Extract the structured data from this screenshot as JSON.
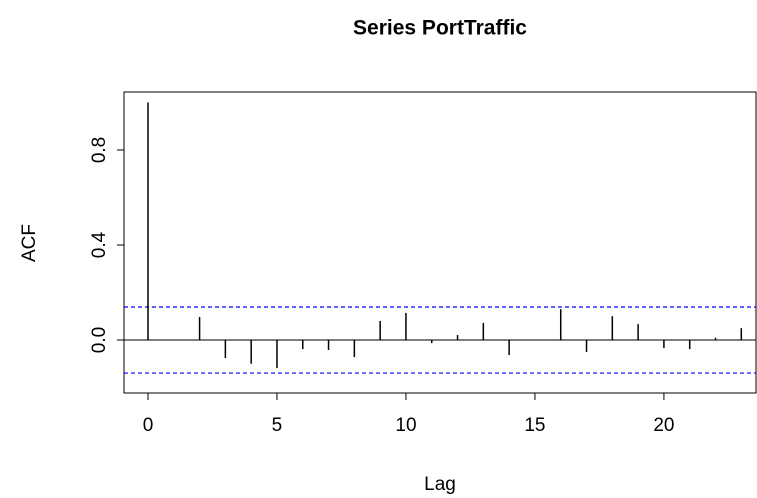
{
  "chart_data": {
    "type": "acf",
    "title": "Series  PortTraffic",
    "xlabel": "Lag",
    "ylabel": "ACF",
    "x": [
      0,
      1,
      2,
      3,
      4,
      5,
      6,
      7,
      8,
      9,
      10,
      11,
      12,
      13,
      14,
      15,
      16,
      17,
      18,
      19,
      20,
      21,
      22,
      23
    ],
    "values": [
      1.0,
      0.0,
      0.097,
      -0.076,
      -0.1,
      -0.118,
      -0.038,
      -0.042,
      -0.072,
      0.08,
      0.114,
      -0.013,
      0.021,
      0.072,
      -0.063,
      0.002,
      0.13,
      -0.05,
      0.1,
      0.067,
      -0.034,
      -0.038,
      0.01,
      0.05
    ],
    "color": "#000000",
    "ci": [
      0.139,
      -0.139
    ],
    "ci_color": "#0000ff",
    "xlim": [
      -0.93,
      23.57
    ],
    "ylim": [
      -0.223,
      1.044
    ],
    "xticks": [
      0,
      5,
      10,
      15,
      20
    ],
    "yticks": [
      {
        "value": 0,
        "label": "0.0"
      },
      0.4,
      0.8
    ]
  }
}
